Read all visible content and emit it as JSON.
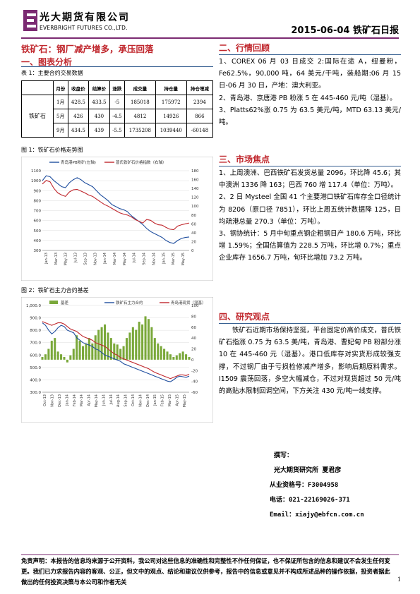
{
  "header": {
    "company_cn": "光大期货有限公司",
    "company_en": "EVERBRIGHT FUTURES CO.,LTD.",
    "report_date_title": "2015-06-04 铁矿石日报",
    "brand_color": "#7b2a72"
  },
  "main_title": "铁矿石：钢厂减产增多，承压回落",
  "left": {
    "section_title": "一、图表分析",
    "table_caption": "表 1：主要合约交易数据",
    "table": {
      "headers": [
        "",
        "月份",
        "收盘价",
        "结算价",
        "涨跌",
        "成交量",
        "持仓量",
        "持仓增减"
      ],
      "row_label": "铁矿石",
      "rows": [
        [
          "1月",
          "428.5",
          "433.5",
          "-5",
          "185018",
          "175972",
          "2394"
        ],
        [
          "5月",
          "426",
          "430",
          "-4.5",
          "4812",
          "14926",
          "866"
        ],
        [
          "9月",
          "434.5",
          "439",
          "-5.5",
          "1735208",
          "1039440",
          "-60148"
        ]
      ]
    },
    "chart1": {
      "caption": "图 1：铁矿石价格走势图",
      "chart_data": {
        "type": "line",
        "series": [
          {
            "name": "青岛港PB粉矿(左轴)",
            "axis": "left",
            "color": "#1f4e9e",
            "values": [
              1000,
              1050,
              1040,
              1000,
              970,
              940,
              930,
              980,
              1010,
              1030,
              1010,
              980,
              960,
              940,
              900,
              860,
              830,
              800,
              760,
              740,
              720,
              710,
              690,
              650,
              620,
              590,
              560,
              520,
              490,
              470,
              450,
              430,
              400,
              380,
              370,
              400,
              420,
              430,
              435
            ]
          },
          {
            "name": "普氏铁矿石价格指数（右轴）",
            "axis": "right",
            "color": "#c0272d",
            "values": [
              150,
              158,
              155,
              140,
              130,
              125,
              122,
              132,
              137,
              138,
              134,
              130,
              125,
              122,
              116,
              110,
              104,
              100,
              95,
              90,
              85,
              82,
              80,
              76,
              70,
              66,
              62,
              70,
              68,
              62,
              58,
              57,
              52,
              48,
              47,
              55,
              58,
              60,
              62
            ]
          }
        ],
        "x_ticks": [
          "Jan-13",
          "Mar-13",
          "May-13",
          "Jul-13",
          "Sep-13",
          "Nov-13",
          "Jan-14",
          "Mar-14",
          "May-14",
          "Jul-14",
          "Sep-14",
          "Nov-14",
          "Jan-15",
          "Mar-15",
          "May-15"
        ],
        "ylim_left": [
          300,
          1100
        ],
        "yticks_left": [
          "1100",
          "1000",
          "900",
          "800",
          "700",
          "600",
          "500",
          "400",
          "300"
        ],
        "ylim_right": [
          0,
          180
        ],
        "yticks_right": [
          "180",
          "160",
          "140",
          "120",
          "100",
          "80",
          "60",
          "40",
          "20",
          "0"
        ],
        "legend": "top"
      }
    },
    "chart2": {
      "caption": "图 2：铁矿石主力合约基差",
      "chart_data": {
        "type": "bar",
        "series": [
          {
            "name": "基差",
            "type": "bar",
            "axis": "right",
            "color": "#7aa83a",
            "values": [
              5,
              10,
              20,
              35,
              40,
              15,
              10,
              5,
              -5,
              8,
              20,
              45,
              35,
              25,
              30,
              40,
              30,
              45,
              55,
              60,
              65,
              50,
              40,
              30,
              28,
              20,
              25,
              40,
              50,
              60,
              55,
              70,
              65,
              80,
              75,
              60,
              40,
              30,
              25,
              20,
              15,
              10,
              5,
              8,
              12,
              15,
              10,
              5
            ]
          },
          {
            "name": "铁矿石主力合约",
            "type": "line",
            "axis": "left",
            "color": "#1f4e9e",
            "values": [
              860,
              840,
              800,
              770,
              790,
              820,
              840,
              830,
              800,
              790,
              780,
              740,
              720,
              700,
              690,
              680,
              670,
              650,
              640,
              620,
              600,
              590,
              580,
              570,
              560,
              550,
              530,
              520,
              510,
              500,
              490,
              480,
              470,
              460,
              450,
              440,
              430,
              420,
              410,
              400,
              390,
              385,
              400,
              420,
              430,
              425,
              420,
              430
            ]
          },
          {
            "name": "青岛港现货（湿基）",
            "type": "line",
            "axis": "left",
            "color": "#c0272d",
            "values": [
              870,
              860,
              850,
              840,
              850,
              860,
              860,
              850,
              830,
              810,
              800,
              790,
              770,
              750,
              740,
              730,
              720,
              700,
              690,
              680,
              670,
              650,
              630,
              610,
              600,
              580,
              570,
              560,
              550,
              540,
              530,
              520,
              510,
              500,
              490,
              475,
              460,
              450,
              440,
              430,
              420,
              410,
              420,
              430,
              440,
              440,
              435,
              445
            ]
          }
        ],
        "x_ticks": [
          "Oct-13",
          "Nov-13",
          "Dec-13",
          "Jan-14",
          "Feb-14",
          "Mar-14",
          "Apr-14",
          "May-14",
          "Jun-14",
          "Jul-14",
          "Aug-14",
          "Sep-14",
          "Oct-14",
          "Nov-14",
          "Dec-14",
          "Jan-15",
          "Feb-15",
          "Mar-15",
          "Apr-15",
          "May-15"
        ],
        "ylim_left": [
          300,
          1000
        ],
        "yticks_left": [
          "1,000.0",
          "900.0",
          "800.0",
          "700.0",
          "600.0",
          "500.0",
          "400.0",
          "300.0"
        ],
        "ylim_right": [
          -60,
          100
        ],
        "yticks_right": [
          "100",
          "80",
          "60",
          "40",
          "20",
          "0",
          "-20",
          "-40",
          "-60"
        ],
        "legend": "top"
      }
    }
  },
  "right": {
    "sec2_title": "二、行情回顾",
    "sec2_items": [
      "1、COREX 06 月 03 日成交 2:国际在途 A，纽曼粉，Fe62.5%，90,000 吨，64 美元/干吨，装船期:06 月 15 日-06 月 30 日，产地：澳大利亚。",
      "2、青岛港、京唐港 PB 粉涨 5 在 445-460 元/吨（湿基）。",
      "3、Platts62%涨 0.75 为 63.5 美元/吨，MTD 63.13 美元/吨。"
    ],
    "sec3_title": "三、市场焦点",
    "sec3_items": [
      "1、上周澳洲、巴西铁矿石发货总量 2096，环比降 45.6；其中澳洲 1336 降 163；巴西 760 增 117.4（单位：万吨）。",
      "2、2 日 Mysteel 全国 41 个主要港口铁矿石库存全口径统计为 8206（原口径 7851），环比上周五统计数据降 125，日均疏港总量 270.3（单位：万吨）。",
      "3、钢协统计：5 月中旬重点钢企粗钢日产 180.6 万吨，环比增 1.59%；全国估算值为 228.5 万吨，环比增 0.7%；重点企业库存 1656.7 万吨，旬环比增加 73.2 万吨。"
    ],
    "sec4_title": "四、研究观点",
    "sec4_text": "铁矿石近期市场保持坚挺，平台固定价高价成交，普氏铁矿石指涨 0.75 为 63.5 美/吨，青岛港、曹妃甸 PB 粉部分涨 10 在 445-460 元（湿基）。港口低库存对实货形成较强支撑，不过钢厂由于亏损检修减产增多，影响后期原料需求。I1509 震荡回落，多空大幅减仓，不过对现货超过 50 元/吨的高贴水限制回调空间，下方关注 430 元/吨一线支撑。",
    "author_label": "撰写：",
    "author_line": "光大期货研究所 夏君彦",
    "license": "从业资格号：F3004958",
    "phone": "电话：021-22169026-371",
    "email": "Email：xiajy@ebfcn.com.cn"
  },
  "footer": {
    "disclaimer": "免责声明：本报告的信息均来源于公开资料，我公司对这些信息的准确性和完整性不作任何保证，也不保证所包含的信息和建议不会发生任何变更。我们已力求报告内容的客观、公正，但文中的观点、结论和建议仅供参考，报告中的信息或意见并不构成所述品种的操作依据，投资者据此做出的任何投资决策与本公司和作者无关",
    "page_number": "1"
  }
}
